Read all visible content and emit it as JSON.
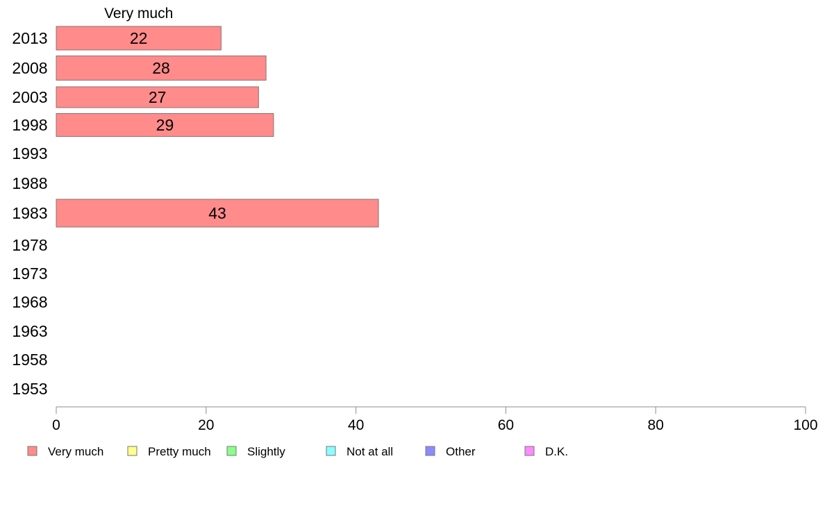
{
  "chart_data": {
    "type": "bar",
    "orientation": "horizontal",
    "stacked": true,
    "categories": [
      "2013",
      "2008",
      "2003",
      "1998",
      "1993",
      "1988",
      "1983",
      "1978",
      "1973",
      "1968",
      "1963",
      "1958",
      "1953"
    ],
    "series": [
      {
        "name": "Very much",
        "color": "#ff8b8b",
        "values": [
          22,
          28,
          27,
          29,
          null,
          null,
          43,
          null,
          null,
          null,
          null,
          null,
          null
        ]
      },
      {
        "name": "Pretty much",
        "color": "#ffff8b",
        "values": [
          null,
          null,
          null,
          null,
          null,
          null,
          null,
          null,
          null,
          null,
          null,
          null,
          null
        ]
      },
      {
        "name": "Slightly",
        "color": "#8bff8b",
        "values": [
          null,
          null,
          null,
          null,
          null,
          null,
          null,
          null,
          null,
          null,
          null,
          null,
          null
        ]
      },
      {
        "name": "Not at all",
        "color": "#8bffff",
        "values": [
          null,
          null,
          null,
          null,
          null,
          null,
          null,
          null,
          null,
          null,
          null,
          null,
          null
        ]
      },
      {
        "name": "Other",
        "color": "#8b8bff",
        "values": [
          null,
          null,
          null,
          null,
          null,
          null,
          null,
          null,
          null,
          null,
          null,
          null,
          null
        ]
      },
      {
        "name": "D.K.",
        "color": "#ff8bff",
        "values": [
          null,
          null,
          null,
          null,
          null,
          null,
          null,
          null,
          null,
          null,
          null,
          null,
          null
        ]
      }
    ],
    "segment_header": "Very much",
    "data_labels": [
      "22",
      "28",
      "27",
      "29",
      "43"
    ],
    "xlim": [
      0,
      100
    ],
    "xticks": [
      "0",
      "20",
      "40",
      "60",
      "80",
      "100"
    ],
    "grid": false,
    "legend_position": "bottom-left",
    "axis_color": "#8c8c8c",
    "bar_border_color": "#8c7070"
  }
}
